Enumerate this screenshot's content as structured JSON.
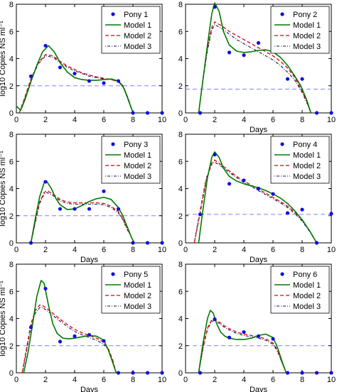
{
  "chart_data": [
    {
      "type": "line",
      "xlim": [
        0,
        10
      ],
      "ylim": [
        0,
        8
      ],
      "xticks": [
        "0",
        "2",
        "4",
        "6",
        "8",
        "10"
      ],
      "yticks": [
        "0",
        "2",
        "4",
        "6",
        "8"
      ],
      "xlabel": "",
      "ylabel": "log10 Copies NS ml⁻¹",
      "threshold": 2.0,
      "legend": [
        "Pony 1",
        "Model 1",
        "Model 2",
        "Model 3"
      ],
      "points": {
        "x": [
          1,
          2,
          3,
          4,
          5,
          6,
          7,
          8,
          9,
          10
        ],
        "y": [
          2.7,
          4.95,
          3.35,
          2.9,
          2.35,
          2.2,
          2.35,
          0,
          0,
          0
        ]
      },
      "series": [
        {
          "name": "Model 1",
          "x": [
            0,
            0.3,
            0.6,
            1,
            1.4,
            1.8,
            2.2,
            2.6,
            3,
            3.5,
            4,
            4.5,
            5,
            5.5,
            6,
            6.5,
            7,
            7.3,
            7.6,
            7.9,
            8.05
          ],
          "y": [
            0.5,
            0.2,
            1.0,
            2.3,
            3.5,
            4.5,
            4.95,
            4.5,
            3.7,
            3.0,
            2.6,
            2.45,
            2.4,
            2.4,
            2.45,
            2.5,
            2.35,
            2.0,
            1.2,
            0.3,
            0
          ]
        },
        {
          "name": "Model 2",
          "x": [
            0.2,
            0.5,
            1,
            1.5,
            2,
            2.5,
            3,
            3.5,
            4,
            4.5,
            5,
            5.5,
            6,
            6.5,
            7,
            7.4,
            7.7,
            8.0
          ],
          "y": [
            0,
            0.9,
            2.5,
            3.7,
            4.3,
            4.2,
            3.8,
            3.45,
            3.2,
            2.95,
            2.8,
            2.65,
            2.55,
            2.45,
            2.3,
            1.8,
            1.0,
            0
          ]
        },
        {
          "name": "Model 3",
          "x": [
            0.2,
            0.5,
            1,
            1.5,
            2,
            2.5,
            3,
            3.5,
            4,
            4.5,
            5,
            5.5,
            6,
            6.5,
            7,
            7.4,
            7.7,
            8.0
          ],
          "y": [
            0,
            0.8,
            2.4,
            3.6,
            4.2,
            4.1,
            3.7,
            3.35,
            3.1,
            2.9,
            2.7,
            2.6,
            2.5,
            2.45,
            2.3,
            1.8,
            1.0,
            0
          ]
        }
      ]
    },
    {
      "type": "line",
      "xlim": [
        0,
        10
      ],
      "ylim": [
        0,
        8
      ],
      "xticks": [
        "0",
        "2",
        "4",
        "6",
        "8",
        "10"
      ],
      "yticks": [
        "0",
        "2",
        "4",
        "6",
        "8"
      ],
      "xlabel": "Days",
      "ylabel": "",
      "threshold": 1.75,
      "legend": [
        "Pony 2",
        "Model 1",
        "Model 2",
        "Model 3"
      ],
      "points": {
        "x": [
          1,
          2,
          3,
          4,
          5,
          6,
          7,
          8,
          9,
          10
        ],
        "y": [
          0,
          7.8,
          4.45,
          4.25,
          5.15,
          5.2,
          2.5,
          2.5,
          0,
          0
        ]
      },
      "series": [
        {
          "name": "Model 1",
          "x": [
            0.9,
            1.2,
            1.5,
            1.8,
            2.0,
            2.3,
            2.6,
            3,
            3.5,
            4,
            4.5,
            5,
            5.5,
            6,
            6.5,
            7,
            7.5,
            7.9,
            8.3,
            8.6
          ],
          "y": [
            0,
            2.5,
            5.0,
            7.3,
            8.1,
            7.5,
            6.0,
            5.0,
            4.55,
            4.45,
            4.5,
            4.6,
            4.65,
            4.5,
            4.1,
            3.5,
            2.7,
            2.0,
            1.0,
            0
          ]
        },
        {
          "name": "Model 2",
          "x": [
            0.9,
            1.2,
            1.5,
            1.8,
            2.0,
            2.5,
            3,
            3.5,
            4,
            4.5,
            5,
            5.5,
            6,
            6.5,
            7,
            7.5,
            8,
            8.3,
            8.6
          ],
          "y": [
            0,
            2.5,
            4.8,
            6.3,
            6.7,
            6.4,
            6.0,
            5.7,
            5.4,
            5.1,
            4.8,
            4.5,
            4.2,
            3.8,
            3.3,
            2.6,
            1.6,
            0.9,
            0
          ]
        },
        {
          "name": "Model 3",
          "x": [
            0.9,
            1.2,
            1.5,
            1.8,
            2.0,
            2.5,
            3,
            3.5,
            4,
            4.5,
            5,
            5.5,
            6,
            6.5,
            7,
            7.5,
            8,
            8.3,
            8.6
          ],
          "y": [
            0,
            2.4,
            4.6,
            6.1,
            6.5,
            6.2,
            5.8,
            5.4,
            5.1,
            4.8,
            4.5,
            4.2,
            3.9,
            3.5,
            3.0,
            2.4,
            1.5,
            0.8,
            0
          ]
        }
      ]
    },
    {
      "type": "line",
      "xlim": [
        0,
        10
      ],
      "ylim": [
        0,
        8
      ],
      "xticks": [
        "0",
        "2",
        "4",
        "6",
        "8",
        "10"
      ],
      "yticks": [
        "0",
        "2",
        "4",
        "6",
        "8"
      ],
      "xlabel": "Days",
      "ylabel": "log10 Copies NS ml⁻¹",
      "threshold": 2.0,
      "legend": [
        "Pony 3",
        "Model 1",
        "Model 2",
        "Model 3"
      ],
      "points": {
        "x": [
          1,
          2,
          3,
          4,
          5,
          6,
          7,
          8,
          9,
          10
        ],
        "y": [
          0,
          4.5,
          2.5,
          2.5,
          2.5,
          3.8,
          2.5,
          0,
          0,
          0
        ]
      },
      "series": [
        {
          "name": "Model 1",
          "x": [
            1,
            1.3,
            1.6,
            1.9,
            2.1,
            2.4,
            2.7,
            3,
            3.5,
            4,
            4.5,
            5,
            5.5,
            6,
            6.5,
            7,
            7.3,
            7.6,
            7.9,
            8.1
          ],
          "y": [
            0,
            1.8,
            3.4,
            4.4,
            4.5,
            4.0,
            3.3,
            2.8,
            2.45,
            2.5,
            2.75,
            3.05,
            3.25,
            3.35,
            3.2,
            2.6,
            2.0,
            1.2,
            0.4,
            0
          ]
        },
        {
          "name": "Model 2",
          "x": [
            1,
            1.3,
            1.6,
            1.9,
            2.1,
            2.5,
            3,
            3.5,
            4,
            4.5,
            5,
            5.5,
            6,
            6.5,
            7,
            7.3,
            7.6,
            7.9,
            8.1
          ],
          "y": [
            0,
            1.6,
            3.0,
            3.7,
            3.85,
            3.6,
            3.2,
            3.0,
            2.95,
            2.95,
            2.95,
            2.95,
            2.9,
            2.7,
            2.3,
            1.8,
            1.1,
            0.4,
            0
          ]
        },
        {
          "name": "Model 3",
          "x": [
            1,
            1.3,
            1.6,
            1.9,
            2.1,
            2.5,
            3,
            3.5,
            4,
            4.5,
            5,
            5.5,
            6,
            6.5,
            7,
            7.3,
            7.6,
            7.9,
            8.1
          ],
          "y": [
            0,
            1.5,
            2.9,
            3.6,
            3.7,
            3.5,
            3.1,
            2.9,
            2.85,
            2.85,
            2.85,
            2.85,
            2.8,
            2.6,
            2.2,
            1.7,
            1.0,
            0.4,
            0
          ]
        }
      ]
    },
    {
      "type": "line",
      "xlim": [
        0,
        10
      ],
      "ylim": [
        0,
        8
      ],
      "xticks": [
        "0",
        "2",
        "4",
        "6",
        "8",
        "10"
      ],
      "yticks": [
        "0",
        "2",
        "4",
        "6",
        "8"
      ],
      "xlabel": "Days",
      "ylabel": "",
      "threshold": 2.1,
      "legend": [
        "Pony 4",
        "Model 1",
        "Model 2",
        "Model 3"
      ],
      "points": {
        "x": [
          1,
          2,
          3,
          4,
          5,
          6,
          7,
          8,
          9,
          10
        ],
        "y": [
          2.1,
          6.5,
          4.35,
          4.6,
          4.0,
          3.6,
          2.2,
          2.45,
          0,
          2.15
        ]
      },
      "series": [
        {
          "name": "Model 1",
          "x": [
            0.9,
            1.2,
            1.5,
            1.8,
            2.0,
            2.3,
            2.6,
            3,
            3.5,
            4,
            4.5,
            5,
            5.5,
            6,
            6.5,
            7,
            7.5,
            8,
            8.5,
            9.0
          ],
          "y": [
            0,
            2.5,
            4.8,
            6.3,
            6.7,
            6.3,
            5.5,
            4.9,
            4.55,
            4.35,
            4.2,
            4.05,
            3.85,
            3.6,
            3.3,
            2.9,
            2.35,
            1.7,
            0.9,
            0
          ]
        },
        {
          "name": "Model 2",
          "x": [
            0.6,
            1.0,
            1.4,
            1.8,
            2.0,
            2.5,
            3,
            3.5,
            4,
            4.5,
            5,
            5.5,
            6,
            6.5,
            7,
            7.5,
            8,
            8.5,
            9.0
          ],
          "y": [
            0,
            2.2,
            4.5,
            5.9,
            6.1,
            5.7,
            5.3,
            4.9,
            4.55,
            4.25,
            3.95,
            3.65,
            3.35,
            3.05,
            2.7,
            2.25,
            1.7,
            0.9,
            0
          ]
        },
        {
          "name": "Model 3",
          "x": [
            0.6,
            1.0,
            1.4,
            1.8,
            2.0,
            2.5,
            3,
            3.5,
            4,
            4.5,
            5,
            5.5,
            6,
            6.5,
            7,
            7.5,
            8,
            8.5,
            9.0
          ],
          "y": [
            0,
            2.4,
            4.7,
            5.8,
            5.95,
            5.6,
            5.2,
            4.8,
            4.45,
            4.15,
            3.85,
            3.55,
            3.25,
            2.95,
            2.6,
            2.15,
            1.6,
            0.85,
            0
          ]
        }
      ]
    },
    {
      "type": "line",
      "xlim": [
        0,
        10
      ],
      "ylim": [
        0,
        8
      ],
      "xticks": [
        "0",
        "2",
        "4",
        "6",
        "8",
        "10"
      ],
      "yticks": [
        "0",
        "2",
        "4",
        "6",
        "8"
      ],
      "xlabel": "Days",
      "ylabel": "log10 Copies NS ml⁻¹",
      "threshold": 2.0,
      "legend": [
        "Pony 5",
        "Model 1",
        "Model 2",
        "Model 3"
      ],
      "points": {
        "x": [
          1,
          2,
          3,
          4,
          5,
          6,
          7,
          8,
          9,
          10
        ],
        "y": [
          3.35,
          6.2,
          2.3,
          2.7,
          2.8,
          2.35,
          0,
          0,
          0,
          0
        ]
      },
      "series": [
        {
          "name": "Model 1",
          "x": [
            0.5,
            0.8,
            1.1,
            1.4,
            1.7,
            1.9,
            2.2,
            2.5,
            2.8,
            3.2,
            3.6,
            4,
            4.5,
            5,
            5.5,
            6,
            6.3,
            6.6,
            6.85
          ],
          "y": [
            0,
            1.5,
            3.5,
            5.6,
            6.8,
            6.6,
            5.0,
            3.6,
            2.9,
            2.55,
            2.5,
            2.55,
            2.65,
            2.75,
            2.7,
            2.4,
            1.7,
            0.8,
            0
          ]
        },
        {
          "name": "Model 2",
          "x": [
            0.4,
            0.7,
            1.0,
            1.3,
            1.6,
            1.8,
            2.2,
            2.6,
            3,
            3.5,
            4,
            4.5,
            5,
            5.5,
            6,
            6.3,
            6.6,
            6.85
          ],
          "y": [
            0,
            1.8,
            3.6,
            4.6,
            5.0,
            4.95,
            4.65,
            4.3,
            3.95,
            3.55,
            3.2,
            2.95,
            2.75,
            2.55,
            2.25,
            1.8,
            1.0,
            0
          ]
        },
        {
          "name": "Model 3",
          "x": [
            0.4,
            0.7,
            1.0,
            1.3,
            1.6,
            1.8,
            2.2,
            2.6,
            3,
            3.5,
            4,
            4.5,
            5,
            5.5,
            6,
            6.3,
            6.6,
            6.85
          ],
          "y": [
            0,
            1.6,
            3.4,
            4.4,
            4.8,
            4.8,
            4.5,
            4.15,
            3.8,
            3.4,
            3.05,
            2.8,
            2.6,
            2.4,
            2.1,
            1.7,
            0.9,
            0
          ]
        }
      ]
    },
    {
      "type": "line",
      "xlim": [
        0,
        10
      ],
      "ylim": [
        0,
        8
      ],
      "xticks": [
        "0",
        "2",
        "4",
        "6",
        "8",
        "10"
      ],
      "yticks": [
        "0",
        "2",
        "4",
        "6",
        "8"
      ],
      "xlabel": "Days",
      "ylabel": "",
      "threshold": 2.0,
      "legend": [
        "Pony 6",
        "Model 1",
        "Model 2",
        "Model 3"
      ],
      "points": {
        "x": [
          1,
          2,
          3,
          4,
          5,
          6,
          7,
          8,
          9,
          10
        ],
        "y": [
          0,
          3.95,
          2.6,
          3.0,
          2.7,
          2.5,
          0,
          0,
          0,
          0
        ]
      },
      "series": [
        {
          "name": "Model 1",
          "x": [
            0.9,
            1.2,
            1.5,
            1.7,
            1.9,
            2.1,
            2.4,
            2.7,
            3,
            3.5,
            4,
            4.5,
            5,
            5.5,
            6,
            6.3,
            6.6,
            6.9
          ],
          "y": [
            0,
            2.2,
            4.0,
            4.6,
            4.4,
            3.7,
            3.0,
            2.7,
            2.55,
            2.45,
            2.45,
            2.55,
            2.75,
            2.85,
            2.6,
            1.9,
            0.9,
            0
          ]
        },
        {
          "name": "Model 2",
          "x": [
            0.9,
            1.2,
            1.5,
            1.8,
            2.0,
            2.3,
            2.6,
            3,
            3.5,
            4,
            4.5,
            5,
            5.5,
            6,
            6.3,
            6.6,
            6.9
          ],
          "y": [
            0,
            1.9,
            3.3,
            3.9,
            3.95,
            3.75,
            3.5,
            3.25,
            3.0,
            2.85,
            2.75,
            2.65,
            2.5,
            2.2,
            1.7,
            0.8,
            0
          ]
        },
        {
          "name": "Model 3",
          "x": [
            0.9,
            1.2,
            1.5,
            1.8,
            2.0,
            2.3,
            2.6,
            3,
            3.5,
            4,
            4.5,
            5,
            5.5,
            6,
            6.3,
            6.6,
            6.9
          ],
          "y": [
            0,
            1.8,
            3.2,
            3.8,
            3.85,
            3.65,
            3.4,
            3.15,
            2.9,
            2.75,
            2.65,
            2.55,
            2.4,
            2.1,
            1.6,
            0.8,
            0
          ]
        }
      ]
    }
  ],
  "colors": {
    "points": "#1010e0",
    "model1": "#007a00",
    "model2": "#e00000",
    "model3": "#101060",
    "threshold": "#8080ff",
    "axis": "#000000"
  }
}
